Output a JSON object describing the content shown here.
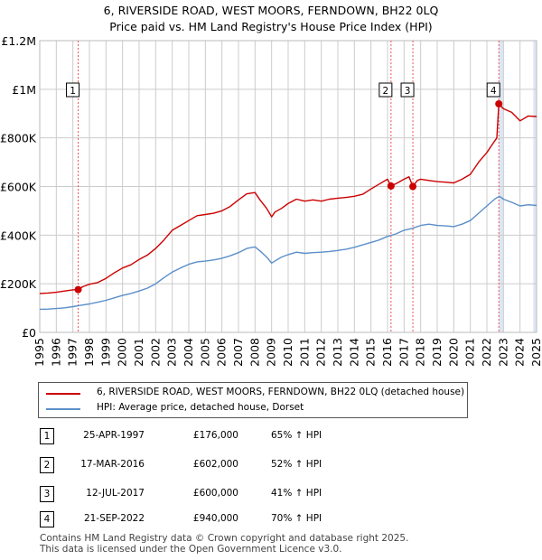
{
  "title_line1": "6, RIVERSIDE ROAD, WEST MOORS, FERNDOWN, BH22 0LQ",
  "title_line2": "Price paid vs. HM Land Registry's House Price Index (HPI)",
  "colors": {
    "property": "#cc0000",
    "hpi": "#5b8fc9",
    "vline": "#ee5555",
    "shade": "#dde6f3",
    "grid": "#cccccc"
  },
  "legend": {
    "property_label": "6, RIVERSIDE ROAD, WEST MOORS, FERNDOWN, BH22 0LQ (detached house)",
    "hpi_label": "HPI: Average price, detached house, Dorset"
  },
  "sales": [
    {
      "num": "1",
      "date": "25-APR-1997",
      "price": "£176,000",
      "hpi": "65% ↑ HPI"
    },
    {
      "num": "2",
      "date": "17-MAR-2016",
      "price": "£602,000",
      "hpi": "52% ↑ HPI"
    },
    {
      "num": "3",
      "date": "12-JUL-2017",
      "price": "£600,000",
      "hpi": "41% ↑ HPI"
    },
    {
      "num": "4",
      "date": "21-SEP-2022",
      "price": "£940,000",
      "hpi": "70% ↑ HPI"
    }
  ],
  "footer_line1": "Contains HM Land Registry data © Crown copyright and database right 2025.",
  "footer_line2": "This data is licensed under the Open Government Licence v3.0.",
  "chart_data": {
    "type": "line",
    "xlim": [
      1995,
      2025
    ],
    "ylim": [
      0,
      1200000
    ],
    "yticks": [
      0,
      200000,
      400000,
      600000,
      800000,
      1000000,
      1200000
    ],
    "ytick_labels": [
      "£0",
      "£200K",
      "£400K",
      "£600K",
      "£800K",
      "£1M",
      "£1.2M"
    ],
    "xticks": [
      "1995",
      "1996",
      "1997",
      "1998",
      "1999",
      "2000",
      "2001",
      "2002",
      "2003",
      "2004",
      "2005",
      "2006",
      "2007",
      "2008",
      "2009",
      "2010",
      "2011",
      "2012",
      "2013",
      "2014",
      "2015",
      "2016",
      "2017",
      "2018",
      "2019",
      "2020",
      "2021",
      "2022",
      "2023",
      "2024",
      "2025"
    ],
    "grid": true,
    "shaded_ranges": [
      [
        2022.72,
        2023.0
      ],
      [
        2024.8,
        2025.0
      ]
    ],
    "series": [
      {
        "name": "6, RIVERSIDE ROAD, WEST MOORS, FERNDOWN, BH22 0LQ (detached house)",
        "x": [
          1995,
          1995.5,
          1996,
          1996.5,
          1997,
          1997.32,
          1997.6,
          1998,
          1998.5,
          1999,
          1999.5,
          2000,
          2000.5,
          2001,
          2001.5,
          2002,
          2002.5,
          2003,
          2003.5,
          2004,
          2004.5,
          2005,
          2005.5,
          2006,
          2006.5,
          2007,
          2007.5,
          2008,
          2008.3,
          2008.7,
          2009,
          2009.2,
          2009.6,
          2010,
          2010.5,
          2011,
          2011.5,
          2012,
          2012.5,
          2013,
          2013.5,
          2014,
          2014.5,
          2015,
          2015.5,
          2016,
          2016.21,
          2016.6,
          2017,
          2017.3,
          2017.53,
          2017.8,
          2018,
          2018.5,
          2019,
          2019.5,
          2020,
          2020.5,
          2021,
          2021.5,
          2022,
          2022.4,
          2022.6,
          2022.72,
          2023,
          2023.5,
          2024,
          2024.5,
          2025
        ],
        "y": [
          160000,
          162000,
          165000,
          170000,
          175000,
          176000,
          188000,
          198000,
          205000,
          222000,
          245000,
          265000,
          278000,
          300000,
          318000,
          345000,
          380000,
          420000,
          440000,
          460000,
          480000,
          485000,
          490000,
          500000,
          518000,
          545000,
          570000,
          575000,
          545000,
          510000,
          475000,
          495000,
          510000,
          530000,
          548000,
          540000,
          545000,
          540000,
          548000,
          552000,
          555000,
          560000,
          568000,
          590000,
          610000,
          630000,
          602000,
          615000,
          630000,
          640000,
          600000,
          625000,
          630000,
          625000,
          620000,
          618000,
          615000,
          630000,
          650000,
          700000,
          740000,
          780000,
          800000,
          940000,
          920000,
          905000,
          870000,
          890000,
          888000
        ]
      },
      {
        "name": "HPI: Average price, detached house, Dorset",
        "x": [
          1995,
          1995.5,
          1996,
          1996.5,
          1997,
          1997.5,
          1998,
          1998.5,
          1999,
          1999.5,
          2000,
          2000.5,
          2001,
          2001.5,
          2002,
          2002.5,
          2003,
          2003.5,
          2004,
          2004.5,
          2005,
          2005.5,
          2006,
          2006.5,
          2007,
          2007.5,
          2008,
          2008.3,
          2008.7,
          2009,
          2009.3,
          2009.6,
          2010,
          2010.5,
          2011,
          2011.5,
          2012,
          2012.5,
          2013,
          2013.5,
          2014,
          2014.5,
          2015,
          2015.5,
          2016,
          2016.5,
          2017,
          2017.5,
          2018,
          2018.5,
          2019,
          2019.5,
          2020,
          2020.5,
          2021,
          2021.5,
          2022,
          2022.5,
          2022.75,
          2023,
          2023.5,
          2024,
          2024.5,
          2025
        ],
        "y": [
          95000,
          96000,
          98000,
          101000,
          106000,
          112000,
          117000,
          124000,
          132000,
          142000,
          152000,
          160000,
          170000,
          182000,
          200000,
          225000,
          248000,
          265000,
          280000,
          290000,
          293000,
          298000,
          305000,
          315000,
          328000,
          345000,
          352000,
          335000,
          310000,
          285000,
          298000,
          310000,
          320000,
          330000,
          325000,
          328000,
          330000,
          333000,
          337000,
          342000,
          350000,
          360000,
          370000,
          380000,
          395000,
          405000,
          420000,
          428000,
          440000,
          445000,
          440000,
          438000,
          435000,
          445000,
          460000,
          490000,
          520000,
          550000,
          560000,
          548000,
          535000,
          520000,
          525000,
          522000
        ]
      }
    ],
    "sales_markers": [
      {
        "label": "1",
        "x": 1997.32,
        "y": 176000
      },
      {
        "label": "2",
        "x": 2016.21,
        "y": 602000
      },
      {
        "label": "3",
        "x": 2017.53,
        "y": 600000
      },
      {
        "label": "4",
        "x": 2022.72,
        "y": 940000
      }
    ]
  }
}
